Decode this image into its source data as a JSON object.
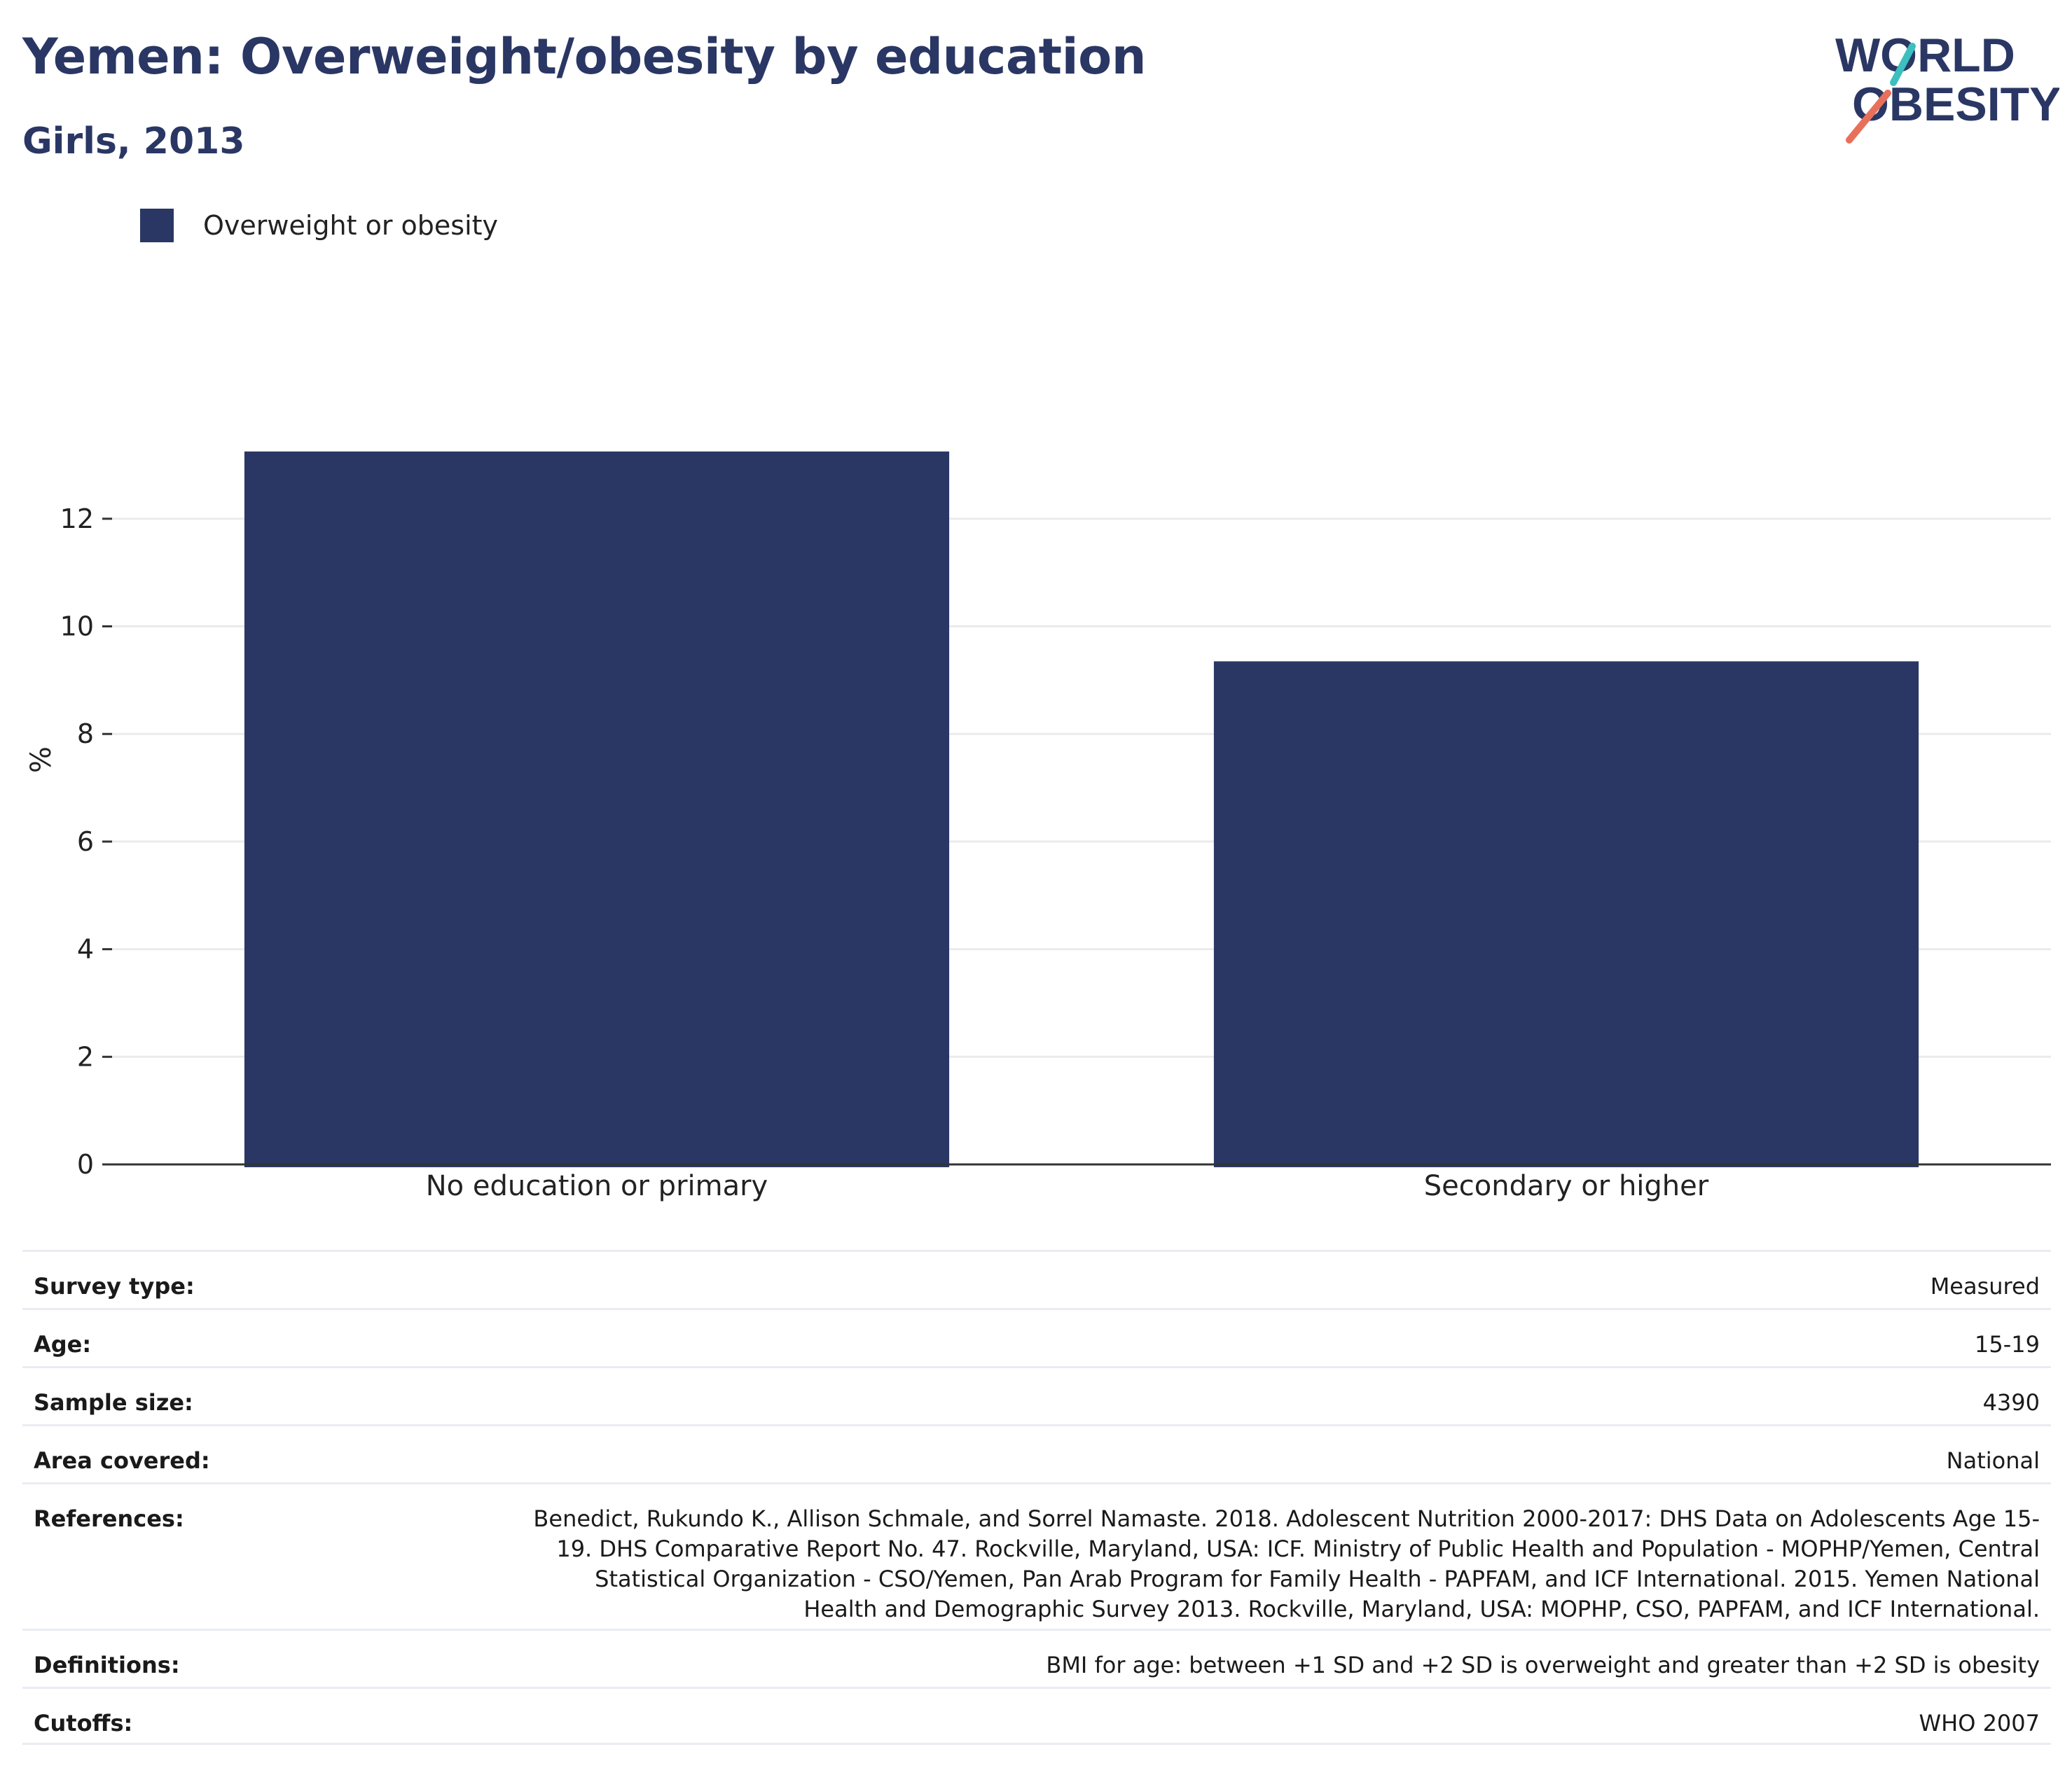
{
  "title": "Yemen: Overweight/obesity by education",
  "subtitle": "Girls, 2013",
  "logo": {
    "line1": "WORLD",
    "line2": "OBESITY",
    "navy": "#2a3764",
    "teal": "#3bbfbf",
    "coral": "#e8705a"
  },
  "legend": {
    "label": "Overweight or obesity",
    "color": "#2a3764"
  },
  "chart_data": {
    "type": "bar",
    "categories": [
      "No education or primary",
      "Secondary or higher"
    ],
    "series": [
      {
        "name": "Overweight or obesity",
        "values": [
          13.25,
          9.35
        ],
        "color": "#2a3764"
      }
    ],
    "ylabel": "%",
    "xlabel": "",
    "ylim": [
      0,
      14
    ],
    "yticks": [
      0,
      2,
      4,
      6,
      8,
      10,
      12
    ],
    "grid": true,
    "legend_position": "top-left"
  },
  "info": [
    {
      "key": "Survey type:",
      "value": "Measured"
    },
    {
      "key": "Age:",
      "value": "15-19"
    },
    {
      "key": "Sample size:",
      "value": "4390"
    },
    {
      "key": "Area covered:",
      "value": "National"
    },
    {
      "key": "References:",
      "lines": [
        "Benedict, Rukundo K., Allison Schmale, and Sorrel Namaste. 2018. Adolescent Nutrition 2000-2017: DHS Data on Adolescents Age 15-",
        "19. DHS Comparative Report No. 47. Rockville, Maryland, USA: ICF. Ministry of Public Health and Population - MOPHP/Yemen, Central",
        "Statistical Organization - CSO/Yemen, Pan Arab Program for Family Health - PAPFAM, and ICF International. 2015. Yemen National",
        "Health and Demographic Survey 2013. Rockville, Maryland, USA: MOPHP, CSO, PAPFAM, and ICF International."
      ]
    },
    {
      "key": "Definitions:",
      "value": "BMI for age: between +1 SD and +2 SD is overweight and greater than +2 SD is obesity"
    },
    {
      "key": "Cutoffs:",
      "value": "WHO 2007"
    }
  ]
}
